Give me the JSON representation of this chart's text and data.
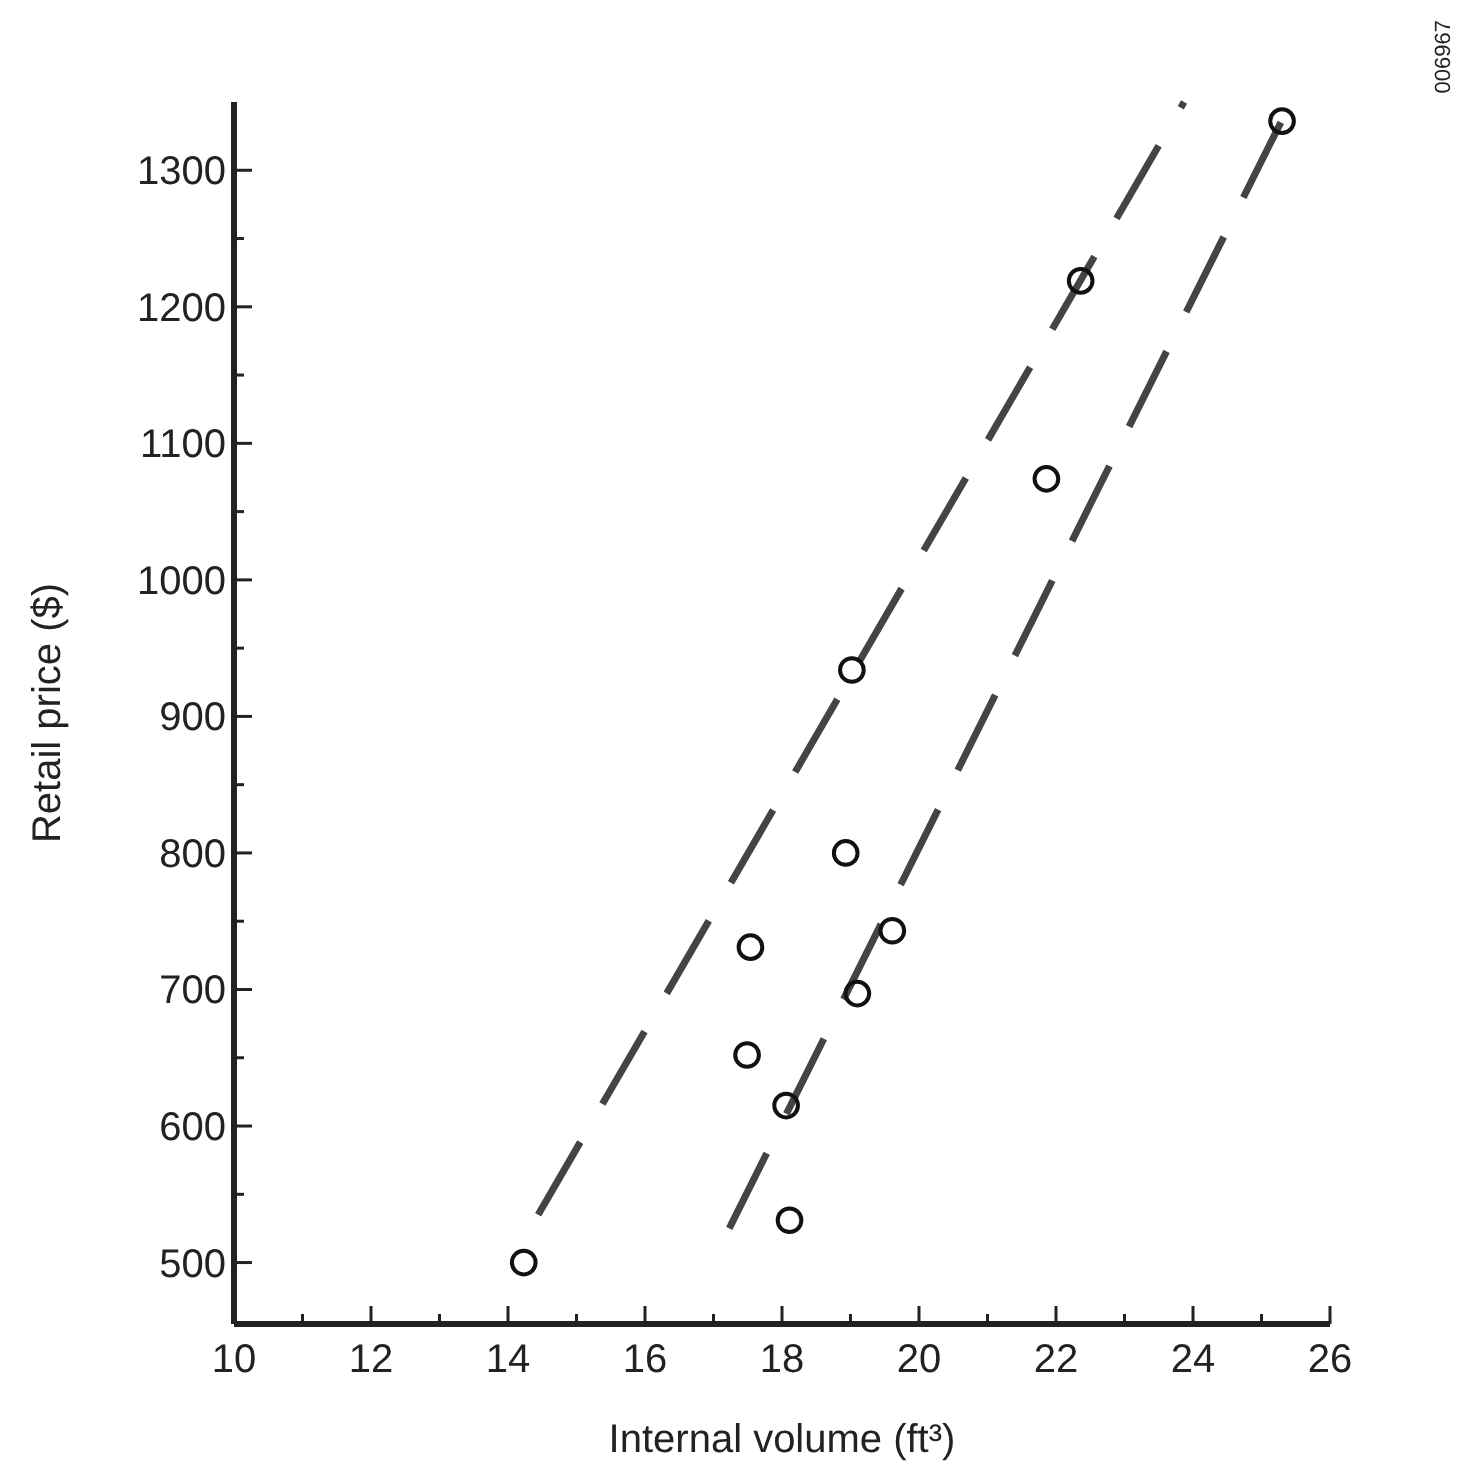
{
  "chart_data": {
    "type": "scatter",
    "xlabel": "Internal volume (ft³)",
    "ylabel": "Retail price ($)",
    "annotations": [
      "006967"
    ],
    "xlim": [
      10,
      26
    ],
    "ylim": [
      455,
      1350
    ],
    "xticks": [
      10,
      {
        "value": 11,
        "label": null
      },
      12,
      {
        "value": 13,
        "label": null
      },
      14,
      {
        "value": 15,
        "label": null
      },
      16,
      {
        "value": 17,
        "label": null
      },
      18,
      {
        "value": 19,
        "label": null
      },
      20,
      {
        "value": 21,
        "label": null
      },
      22,
      {
        "value": 23,
        "label": null
      },
      24,
      {
        "value": 25,
        "label": null
      },
      26
    ],
    "yticks": [
      500,
      {
        "value": 550,
        "label": null
      },
      600,
      {
        "value": 650,
        "label": null
      },
      700,
      {
        "value": 750,
        "label": null
      },
      800,
      {
        "value": 850,
        "label": null
      },
      900,
      {
        "value": 950,
        "label": null
      },
      1000,
      {
        "value": 1050,
        "label": null
      },
      1100,
      {
        "value": 1150,
        "label": null
      },
      1200,
      {
        "value": 1250,
        "label": null
      },
      1300
    ],
    "series": [
      {
        "type": "line",
        "color": "#444444",
        "line_style": "dashed",
        "marker": "none",
        "x": [
          14.44,
          23.87
        ],
        "values": [
          535,
          1350
        ]
      },
      {
        "type": "line",
        "color": "#444444",
        "line_style": "dashed",
        "marker": "none",
        "x": [
          17.23,
          25.43
        ],
        "values": [
          525,
          1350
        ]
      },
      {
        "color": "#111111",
        "marker": "circle",
        "x": [
          14.23,
          17.54,
          17.49,
          18.06,
          18.11,
          18.93,
          19.1,
          19.61,
          19.02,
          21.86,
          22.36,
          25.3
        ],
        "values": [
          500,
          731,
          652,
          615,
          531,
          800,
          697,
          743,
          934,
          1074,
          1219,
          1336
        ]
      }
    ]
  }
}
